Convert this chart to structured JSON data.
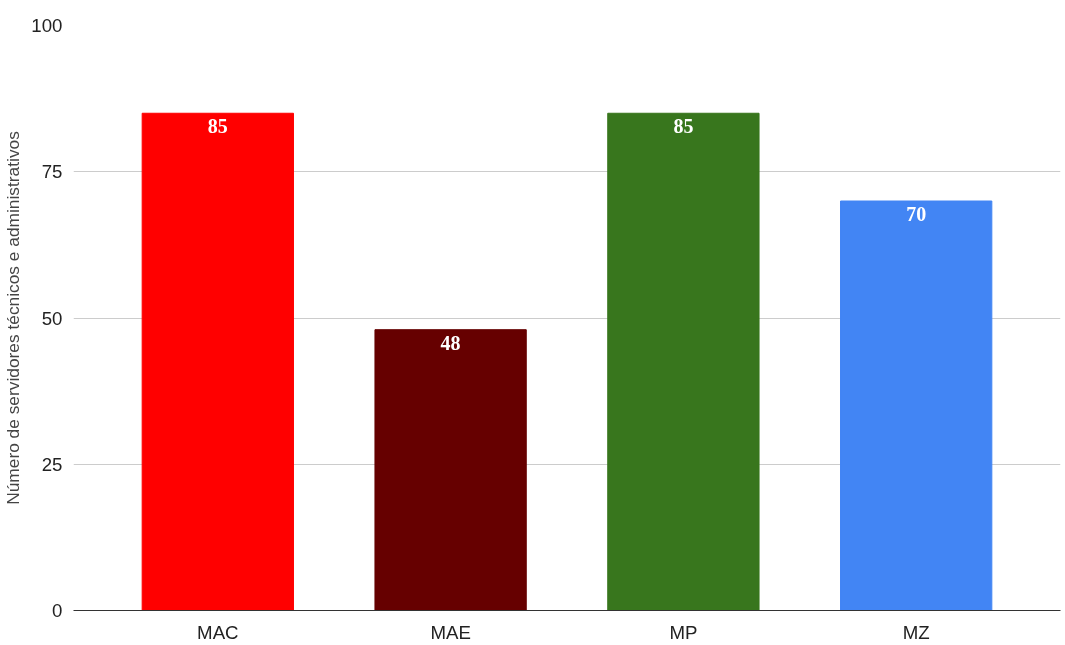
{
  "chart_data": {
    "type": "bar",
    "ylabel": "Número de servidores técnicos e administrativos",
    "categories": [
      "MAC",
      "MAE",
      "MP",
      "MZ"
    ],
    "values": [
      85,
      48,
      85,
      70
    ],
    "colors": [
      "#ff0000",
      "#660000",
      "#38761d",
      "#4285f4"
    ],
    "ylim": [
      0,
      100
    ],
    "yticks": [
      0,
      25,
      50,
      75,
      100
    ],
    "grid": "y",
    "data_labels": true
  }
}
